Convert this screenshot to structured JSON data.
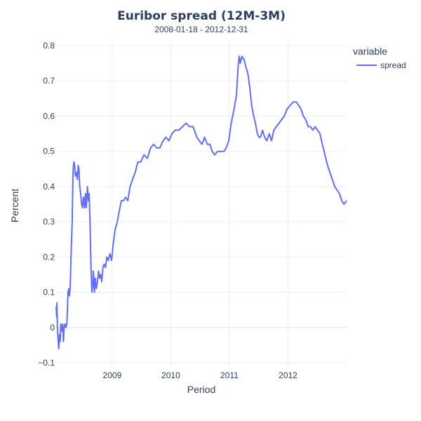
{
  "chart_data": {
    "type": "line",
    "title": "Euribor spread (12M-3M)",
    "subtitle": "2008-01-18 - 2012-12-31",
    "xlabel": "Period",
    "ylabel": "Percent",
    "xlim": [
      "2008-01-18",
      "2012-12-31"
    ],
    "ylim": [
      -0.1,
      0.8
    ],
    "x_tick_labels": [
      "2009",
      "2010",
      "2011",
      "2012"
    ],
    "x_ticks": [
      "2009-01-01",
      "2010-01-01",
      "2011-01-01",
      "2012-01-01"
    ],
    "y_tick_labels": [
      "−0.1",
      "0",
      "0.1",
      "0.2",
      "0.3",
      "0.4",
      "0.5",
      "0.6",
      "0.7",
      "0.8"
    ],
    "y_ticks": [
      -0.1,
      0,
      0.1,
      0.2,
      0.3,
      0.4,
      0.5,
      0.6,
      0.7,
      0.8
    ],
    "grid": true,
    "legend": {
      "title": "variable",
      "position": "top-right"
    },
    "series": [
      {
        "name": "spread",
        "color": "#636efa",
        "points": [
          [
            "2008-01-18",
            0.06
          ],
          [
            "2008-01-21",
            0.03
          ],
          [
            "2008-01-23",
            0.07
          ],
          [
            "2008-01-26",
            0.0
          ],
          [
            "2008-01-30",
            -0.03
          ],
          [
            "2008-02-03",
            -0.06
          ],
          [
            "2008-02-08",
            -0.02
          ],
          [
            "2008-02-12",
            -0.04
          ],
          [
            "2008-02-16",
            0.01
          ],
          [
            "2008-02-22",
            -0.01
          ],
          [
            "2008-02-28",
            0.01
          ],
          [
            "2008-03-03",
            -0.04
          ],
          [
            "2008-03-08",
            0.0
          ],
          [
            "2008-03-13",
            0.01
          ],
          [
            "2008-03-18",
            0.0
          ],
          [
            "2008-03-25",
            0.01
          ],
          [
            "2008-04-01",
            0.1
          ],
          [
            "2008-04-06",
            0.11
          ],
          [
            "2008-04-10",
            0.09
          ],
          [
            "2008-04-15",
            0.12
          ],
          [
            "2008-04-21",
            0.22
          ],
          [
            "2008-04-27",
            0.3
          ],
          [
            "2008-05-02",
            0.44
          ],
          [
            "2008-05-07",
            0.47
          ],
          [
            "2008-05-12",
            0.46
          ],
          [
            "2008-05-17",
            0.43
          ],
          [
            "2008-05-23",
            0.44
          ],
          [
            "2008-05-29",
            0.42
          ],
          [
            "2008-06-03",
            0.46
          ],
          [
            "2008-06-08",
            0.45
          ],
          [
            "2008-06-13",
            0.4
          ],
          [
            "2008-06-19",
            0.38
          ],
          [
            "2008-06-24",
            0.35
          ],
          [
            "2008-06-30",
            0.34
          ],
          [
            "2008-07-06",
            0.37
          ],
          [
            "2008-07-12",
            0.34
          ],
          [
            "2008-07-18",
            0.38
          ],
          [
            "2008-07-24",
            0.34
          ],
          [
            "2008-07-31",
            0.4
          ],
          [
            "2008-08-06",
            0.36
          ],
          [
            "2008-08-11",
            0.38
          ],
          [
            "2008-08-17",
            0.28
          ],
          [
            "2008-08-22",
            0.17
          ],
          [
            "2008-08-28",
            0.1
          ],
          [
            "2008-09-02",
            0.12
          ],
          [
            "2008-09-06",
            0.16
          ],
          [
            "2008-09-12",
            0.1
          ],
          [
            "2008-09-18",
            0.14
          ],
          [
            "2008-09-24",
            0.11
          ],
          [
            "2008-10-01",
            0.13
          ],
          [
            "2008-10-09",
            0.16
          ],
          [
            "2008-10-15",
            0.14
          ],
          [
            "2008-10-22",
            0.15
          ],
          [
            "2008-10-28",
            0.13
          ],
          [
            "2008-11-04",
            0.17
          ],
          [
            "2008-11-12",
            0.18
          ],
          [
            "2008-11-20",
            0.17
          ],
          [
            "2008-11-28",
            0.2
          ],
          [
            "2008-12-08",
            0.19
          ],
          [
            "2008-12-18",
            0.21
          ],
          [
            "2008-12-28",
            0.19
          ],
          [
            "2009-01-08",
            0.24
          ],
          [
            "2009-01-20",
            0.28
          ],
          [
            "2009-02-02",
            0.3
          ],
          [
            "2009-02-14",
            0.33
          ],
          [
            "2009-02-27",
            0.36
          ],
          [
            "2009-03-12",
            0.36
          ],
          [
            "2009-03-25",
            0.37
          ],
          [
            "2009-04-08",
            0.36
          ],
          [
            "2009-04-22",
            0.4
          ],
          [
            "2009-05-08",
            0.42
          ],
          [
            "2009-05-24",
            0.44
          ],
          [
            "2009-06-10",
            0.47
          ],
          [
            "2009-06-28",
            0.47
          ],
          [
            "2009-07-18",
            0.49
          ],
          [
            "2009-08-08",
            0.48
          ],
          [
            "2009-08-28",
            0.51
          ],
          [
            "2009-09-16",
            0.52
          ],
          [
            "2009-10-04",
            0.51
          ],
          [
            "2009-10-25",
            0.51
          ],
          [
            "2009-11-14",
            0.53
          ],
          [
            "2009-12-02",
            0.54
          ],
          [
            "2009-12-20",
            0.53
          ],
          [
            "2010-01-08",
            0.55
          ],
          [
            "2010-01-28",
            0.56
          ],
          [
            "2010-02-20",
            0.56
          ],
          [
            "2010-03-15",
            0.57
          ],
          [
            "2010-04-06",
            0.58
          ],
          [
            "2010-04-28",
            0.57
          ],
          [
            "2010-05-20",
            0.57
          ],
          [
            "2010-06-12",
            0.54
          ],
          [
            "2010-06-28",
            0.53
          ],
          [
            "2010-07-14",
            0.52
          ],
          [
            "2010-07-30",
            0.54
          ],
          [
            "2010-08-16",
            0.52
          ],
          [
            "2010-09-01",
            0.52
          ],
          [
            "2010-09-16",
            0.5
          ],
          [
            "2010-10-01",
            0.49
          ],
          [
            "2010-10-20",
            0.5
          ],
          [
            "2010-11-10",
            0.5
          ],
          [
            "2010-11-28",
            0.5
          ],
          [
            "2010-12-12",
            0.51
          ],
          [
            "2010-12-28",
            0.53
          ],
          [
            "2011-01-12",
            0.58
          ],
          [
            "2011-01-30",
            0.62
          ],
          [
            "2011-02-14",
            0.66
          ],
          [
            "2011-02-24",
            0.74
          ],
          [
            "2011-03-03",
            0.77
          ],
          [
            "2011-03-10",
            0.75
          ],
          [
            "2011-03-20",
            0.77
          ],
          [
            "2011-04-02",
            0.76
          ],
          [
            "2011-04-14",
            0.74
          ],
          [
            "2011-04-26",
            0.72
          ],
          [
            "2011-05-08",
            0.68
          ],
          [
            "2011-05-20",
            0.63
          ],
          [
            "2011-06-01",
            0.6
          ],
          [
            "2011-06-12",
            0.58
          ],
          [
            "2011-06-24",
            0.55
          ],
          [
            "2011-07-04",
            0.54
          ],
          [
            "2011-07-14",
            0.54
          ],
          [
            "2011-07-26",
            0.56
          ],
          [
            "2011-08-08",
            0.54
          ],
          [
            "2011-08-22",
            0.53
          ],
          [
            "2011-09-06",
            0.55
          ],
          [
            "2011-09-20",
            0.53
          ],
          [
            "2011-10-05",
            0.56
          ],
          [
            "2011-10-20",
            0.57
          ],
          [
            "2011-11-06",
            0.58
          ],
          [
            "2011-11-22",
            0.59
          ],
          [
            "2011-12-08",
            0.6
          ],
          [
            "2011-12-26",
            0.62
          ],
          [
            "2012-01-14",
            0.63
          ],
          [
            "2012-02-02",
            0.64
          ],
          [
            "2012-02-22",
            0.64
          ],
          [
            "2012-03-08",
            0.63
          ],
          [
            "2012-03-22",
            0.62
          ],
          [
            "2012-04-06",
            0.6
          ],
          [
            "2012-04-20",
            0.59
          ],
          [
            "2012-05-06",
            0.57
          ],
          [
            "2012-05-20",
            0.57
          ],
          [
            "2012-06-04",
            0.56
          ],
          [
            "2012-06-18",
            0.57
          ],
          [
            "2012-07-03",
            0.56
          ],
          [
            "2012-07-18",
            0.55
          ],
          [
            "2012-08-02",
            0.52
          ],
          [
            "2012-08-18",
            0.49
          ],
          [
            "2012-09-03",
            0.46
          ],
          [
            "2012-09-18",
            0.44
          ],
          [
            "2012-10-03",
            0.42
          ],
          [
            "2012-10-18",
            0.4
          ],
          [
            "2012-11-02",
            0.39
          ],
          [
            "2012-11-16",
            0.38
          ],
          [
            "2012-12-01",
            0.36
          ],
          [
            "2012-12-14",
            0.35
          ],
          [
            "2012-12-31",
            0.36
          ]
        ]
      }
    ]
  }
}
